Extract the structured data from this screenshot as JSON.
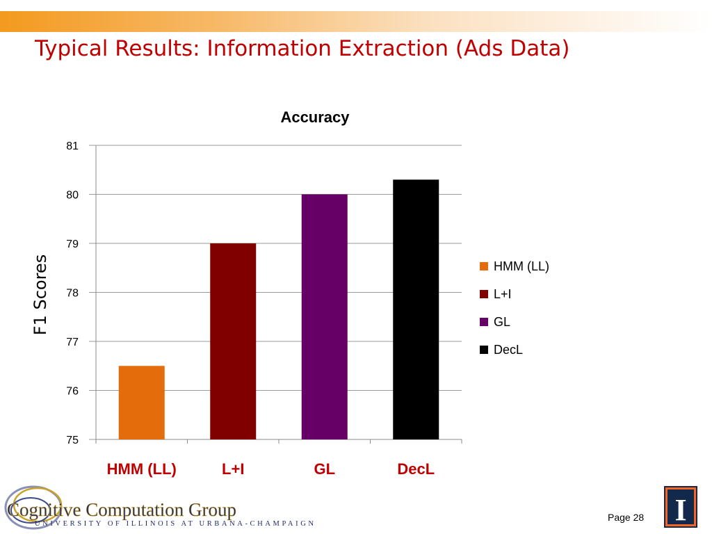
{
  "slide": {
    "title": "Typical Results: Information Extraction (Ads Data)",
    "page_label": "Page 28"
  },
  "logos": {
    "group_name": "Cognitive Computation Group",
    "university": "UNIVERSITY OF ILLINOIS AT URBANA-CHAMPAIGN",
    "uiuc_mark": "I"
  },
  "chart_data": {
    "type": "bar",
    "title": "Accuracy",
    "ylabel": "F1 Scores",
    "xlabel": "",
    "categories": [
      "HMM (LL)",
      "L+I",
      "GL",
      "DecL"
    ],
    "values": [
      76.5,
      79.0,
      80.0,
      80.3
    ],
    "colors": [
      "#e46c0a",
      "#800000",
      "#660066",
      "#000000"
    ],
    "ylim": [
      75,
      81
    ],
    "yticks": [
      75,
      76,
      77,
      78,
      79,
      80,
      81
    ],
    "grid": true,
    "legend": {
      "placement": "right",
      "entries": [
        "HMM (LL)",
        "L+I",
        "GL",
        "DecL"
      ]
    },
    "category_label_color": "#c00000"
  }
}
